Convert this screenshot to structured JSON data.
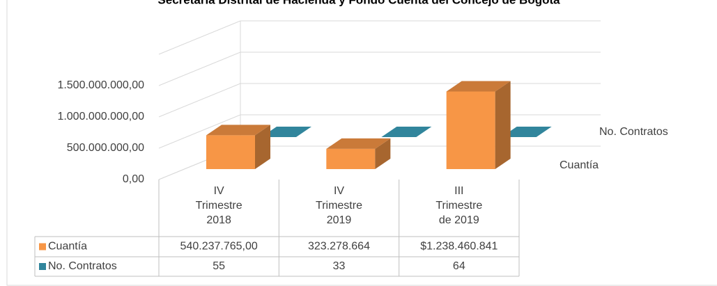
{
  "chart_data": {
    "type": "bar3d",
    "title": "Secretaría Distrital de Hacienda y Fondo Cuenta del Concejo de Bogotá",
    "categories": [
      "IV\nTrimestre\n2018",
      "IV\nTrimestre\n2019",
      "III\nTrimestre\nde 2019"
    ],
    "series": [
      {
        "name": "Cuantía",
        "color": "#f79646",
        "values": [
          540237765,
          323278664,
          1238460841
        ],
        "value_labels": [
          "540.237.765,00",
          "323.278.664",
          "$1.238.460.841"
        ]
      },
      {
        "name": "No. Contratos",
        "color": "#31859c",
        "values": [
          55,
          33,
          64
        ],
        "value_labels": [
          "55",
          "33",
          "64"
        ]
      }
    ],
    "ylim": [
      0,
      2000000000
    ],
    "yticks": [
      {
        "value": 0,
        "label": "0,00"
      },
      {
        "value": 500000000,
        "label": "500.000.000,00"
      },
      {
        "value": 1000000000,
        "label": "1.000.000.000,00"
      },
      {
        "value": 1500000000,
        "label": "1.500.000.000,00"
      }
    ],
    "grid": true
  }
}
